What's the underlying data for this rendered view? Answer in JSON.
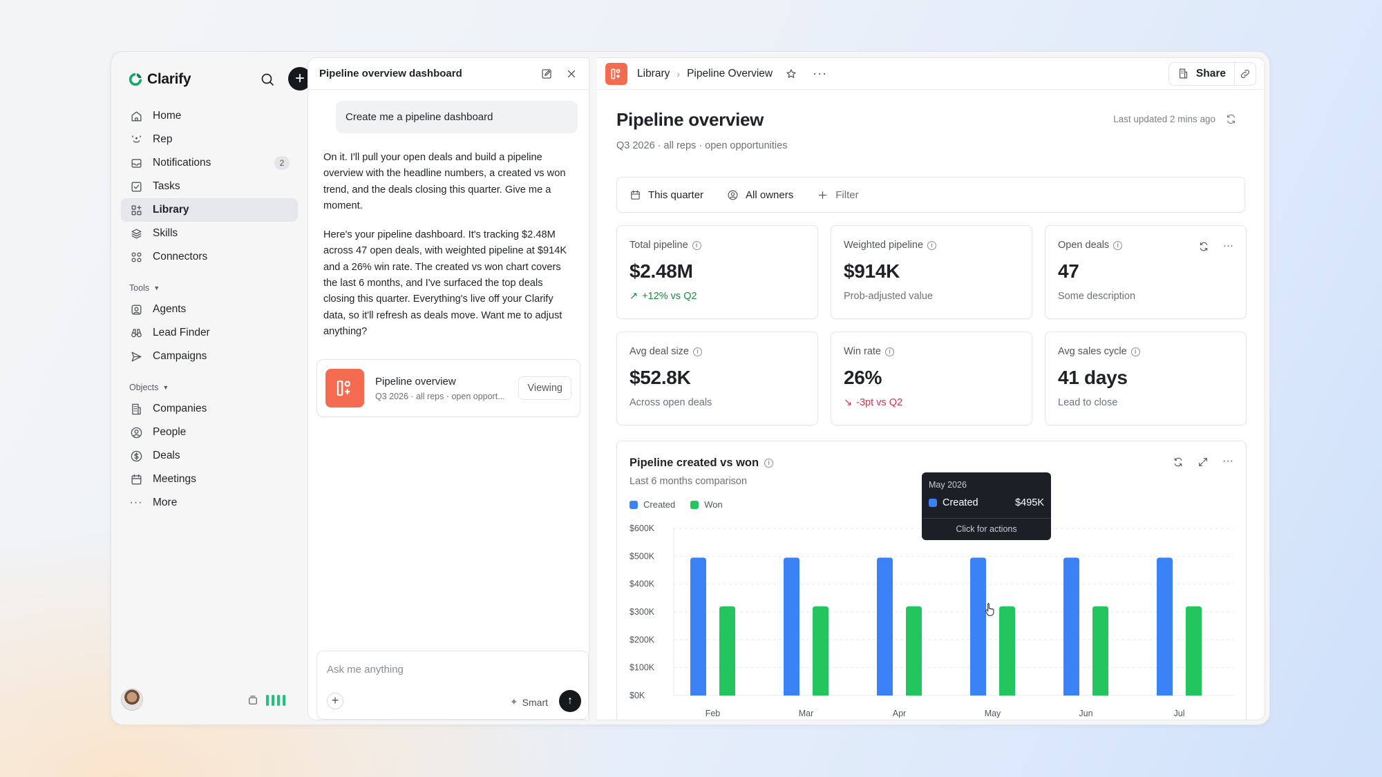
{
  "app": {
    "name": "Clarify"
  },
  "sidebar": {
    "items": [
      {
        "label": "Home",
        "icon": "home-icon"
      },
      {
        "label": "Rep",
        "icon": "rep-icon"
      },
      {
        "label": "Notifications",
        "icon": "inbox-icon",
        "badge": "2"
      },
      {
        "label": "Tasks",
        "icon": "checkbox-icon"
      },
      {
        "label": "Library",
        "icon": "library-icon",
        "active": true
      },
      {
        "label": "Skills",
        "icon": "layers-icon"
      },
      {
        "label": "Connectors",
        "icon": "connectors-icon"
      }
    ],
    "tools_label": "Tools",
    "tools": [
      {
        "label": "Agents",
        "icon": "agents-icon"
      },
      {
        "label": "Lead Finder",
        "icon": "binoculars-icon"
      },
      {
        "label": "Campaigns",
        "icon": "send-icon"
      }
    ],
    "objects_label": "Objects",
    "objects": [
      {
        "label": "Companies",
        "icon": "building-icon"
      },
      {
        "label": "People",
        "icon": "person-icon"
      },
      {
        "label": "Deals",
        "icon": "dollar-icon"
      },
      {
        "label": "Meetings",
        "icon": "calendar-icon"
      },
      {
        "label": "More",
        "icon": "more-icon"
      }
    ]
  },
  "chat": {
    "title": "Pipeline overview dashboard",
    "user_message": "Create me a pipeline dashboard",
    "reply_1": "On it. I'll pull your open deals and build a pipeline overview with the headline numbers, a created vs won trend, and the deals closing this quarter. Give me a moment.",
    "reply_2": "Here's your pipeline dashboard. It's tracking $2.48M across 47 open deals, with weighted pipeline at $914K and a 26% win rate. The created vs won chart covers the last 6 months, and I've surfaced the top deals closing this quarter. Everything's live off your Clarify data, so it'll refresh as deals move. Want me to adjust anything?",
    "artifact": {
      "title": "Pipeline overview",
      "subtitle": "Q3 2026 · all reps · open opport...",
      "action": "Viewing"
    },
    "composer": {
      "placeholder": "Ask me anything",
      "mode": "Smart"
    }
  },
  "main": {
    "breadcrumb": [
      "Library",
      "Pipeline Overview"
    ],
    "share_label": "Share",
    "title": "Pipeline overview",
    "subtitle": "Q3 2026 · all reps · open opportunities",
    "last_updated": "Last updated 2 mins ago",
    "filters": {
      "period": "This quarter",
      "owners": "All owners",
      "add": "Filter"
    },
    "cards": [
      {
        "label": "Total pipeline",
        "value": "$2.48M",
        "note": "+12% vs Q2",
        "trend": "up"
      },
      {
        "label": "Weighted pipeline",
        "value": "$914K",
        "note": "Prob-adjusted value",
        "trend": "none"
      },
      {
        "label": "Open deals",
        "value": "47",
        "note": "Some description",
        "trend": "none"
      },
      {
        "label": "Avg deal size",
        "value": "$52.8K",
        "note": "Across open deals",
        "trend": "none"
      },
      {
        "label": "Win rate",
        "value": "26%",
        "note": "-3pt vs Q2",
        "trend": "down"
      },
      {
        "label": "Avg sales cycle",
        "value": "41 days",
        "note": "Lead to close",
        "trend": "none"
      }
    ],
    "chart_title": "Pipeline created vs won",
    "chart_subtitle": "Last 6 months comparison",
    "tooltip": {
      "period": "May 2026",
      "series": "Created",
      "value": "$495K",
      "footer": "Click for actions"
    }
  },
  "colors": {
    "created": "#3b82f6",
    "won": "#22c55e",
    "accent": "#f46b50"
  },
  "chart_data": {
    "type": "bar",
    "categories": [
      "Feb",
      "Mar",
      "Apr",
      "May",
      "Jun",
      "Jul"
    ],
    "series": [
      {
        "name": "Created",
        "values": [
          495,
          495,
          495,
          495,
          495,
          495
        ]
      },
      {
        "name": "Won",
        "values": [
          320,
          320,
          320,
          320,
          320,
          320
        ]
      }
    ],
    "yticks": [
      "$0K",
      "$100K",
      "$200K",
      "$300K",
      "$400K",
      "$500K",
      "$600K"
    ],
    "ylim": [
      0,
      600
    ],
    "legend": "top-left",
    "grid": true
  }
}
